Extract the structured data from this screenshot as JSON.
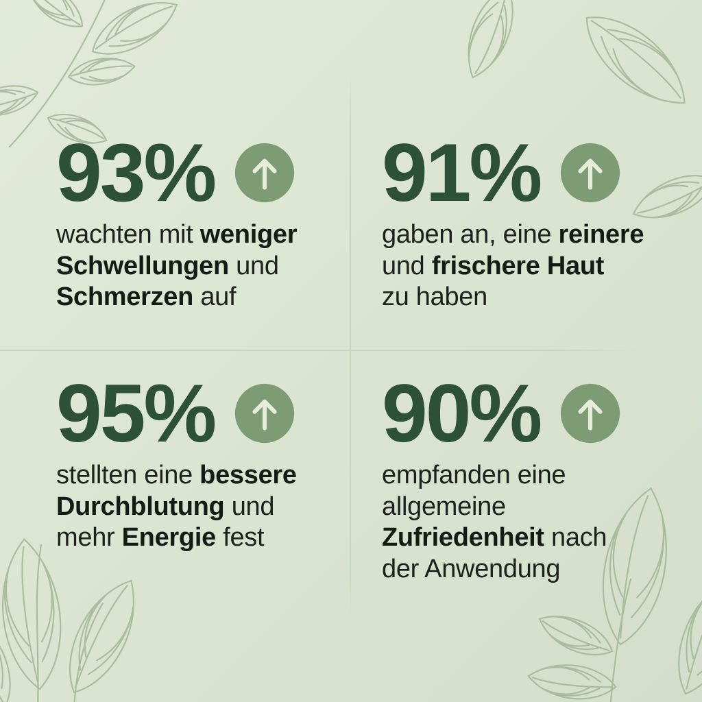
{
  "meta": {
    "kind": "statistics-infographic",
    "language": "de"
  },
  "colors": {
    "background_start": "#e3ead9",
    "background_end": "#d3decb",
    "number_green": "#2d5137",
    "circle_green": "#7d9c74",
    "arrow_light": "#e7edda",
    "text_dark": "#1d201c",
    "leaf_line": "#a3b698",
    "divider": "#c6d3bb"
  },
  "chart_data": {
    "type": "table",
    "title": "",
    "columns": [
      "percentage",
      "description"
    ],
    "values": [
      93,
      91,
      95,
      90
    ],
    "rows": [
      [
        "93%",
        "wachten mit weniger Schwellungen und Schmerzen auf"
      ],
      [
        "91%",
        "gaben an, eine reinere und frischere Haut zu haben"
      ],
      [
        "95%",
        "stellten eine bessere Durchblutung und mehr Energie fest"
      ],
      [
        "90%",
        "empfanden eine allgemeine Zufriedenheit nach der Anwendung"
      ]
    ]
  },
  "stats": [
    {
      "value": "93%",
      "icon": "arrow-up-icon",
      "lines": [
        [
          {
            "text": "wachten mit ",
            "bold": false
          },
          {
            "text": "weniger",
            "bold": true
          }
        ],
        [
          {
            "text": "Schwellungen",
            "bold": true
          },
          {
            "text": " und",
            "bold": false
          }
        ],
        [
          {
            "text": "Schmerzen",
            "bold": true
          },
          {
            "text": " auf",
            "bold": false
          }
        ]
      ]
    },
    {
      "value": "91%",
      "icon": "arrow-up-icon",
      "lines": [
        [
          {
            "text": "gaben an, eine ",
            "bold": false
          },
          {
            "text": "reinere",
            "bold": true
          }
        ],
        [
          {
            "text": "und ",
            "bold": false
          },
          {
            "text": "frischere Haut",
            "bold": true
          }
        ],
        [
          {
            "text": "zu haben",
            "bold": false
          }
        ]
      ]
    },
    {
      "value": "95%",
      "icon": "arrow-up-icon",
      "lines": [
        [
          {
            "text": "stellten eine ",
            "bold": false
          },
          {
            "text": "bessere",
            "bold": true
          }
        ],
        [
          {
            "text": "Durchblutung",
            "bold": true
          },
          {
            "text": " und",
            "bold": false
          }
        ],
        [
          {
            "text": "mehr ",
            "bold": false
          },
          {
            "text": "Energie",
            "bold": true
          },
          {
            "text": " fest",
            "bold": false
          }
        ]
      ]
    },
    {
      "value": "90%",
      "icon": "arrow-up-icon",
      "lines": [
        [
          {
            "text": "empfanden eine",
            "bold": false
          }
        ],
        [
          {
            "text": "allgemeine",
            "bold": false
          }
        ],
        [
          {
            "text": "Zufriedenheit",
            "bold": true
          },
          {
            "text": " nach",
            "bold": false
          }
        ],
        [
          {
            "text": "der Anwendung",
            "bold": false
          }
        ]
      ]
    }
  ]
}
